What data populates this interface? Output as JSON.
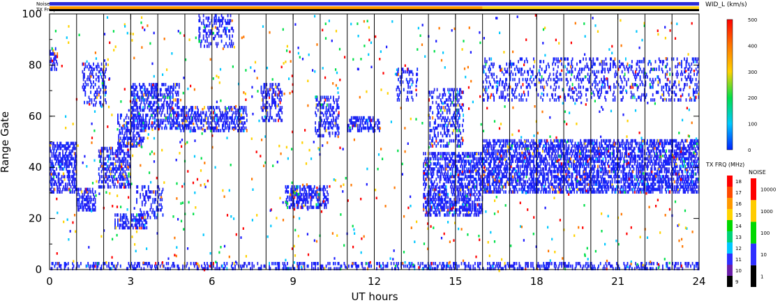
{
  "chart_data": {
    "type": "heatmap",
    "title": "",
    "xlabel": "UT hours",
    "ylabel": "Range Gate",
    "xlim": [
      0,
      24
    ],
    "ylim": [
      0,
      100
    ],
    "x_ticks": [
      "0",
      "3",
      "6",
      "9",
      "12",
      "15",
      "18",
      "21",
      "24"
    ],
    "y_ticks": [
      "0",
      "20",
      "40",
      "60",
      "80",
      "100"
    ],
    "top_bars": {
      "noise_label": "Noise",
      "txfreq_label": "TX Freq",
      "noise_color": "#2a2ad8",
      "txfreq_segments": [
        {
          "start": 0,
          "end": 16,
          "color": "#ff9a00"
        },
        {
          "start": 16,
          "end": 24,
          "color": "#ffd21a"
        }
      ]
    },
    "colorbars": {
      "width": {
        "label": "WID_L (km/s)",
        "min": 0,
        "max": 500,
        "ticks": [
          "0",
          "100",
          "200",
          "300",
          "400",
          "500"
        ],
        "colors": [
          "#0022ff",
          "#00c8ff",
          "#00e04a",
          "#ffd200",
          "#ff7700",
          "#ff0000"
        ]
      },
      "tx_freq": {
        "label": "TX FRQ (MHz)",
        "ticks": [
          "9",
          "10",
          "11",
          "12",
          "13",
          "14",
          "15",
          "16",
          "17",
          "18"
        ],
        "colors": [
          "#000000",
          "#6b1fa8",
          "#2f2fff",
          "#00c7ff",
          "#00d27a",
          "#00d800",
          "#ffd400",
          "#ff9900",
          "#ff4a00",
          "#ff0000"
        ]
      },
      "noise": {
        "label": "NOISE",
        "ticks": [
          "1",
          "10",
          "100",
          "1000",
          "10000"
        ],
        "colors": [
          "#000000",
          "#2f2fff",
          "#00d800",
          "#ffcc00",
          "#ff0000"
        ]
      }
    },
    "vertical_markers_ut": [
      1,
      2,
      3,
      4,
      5,
      6,
      7,
      8,
      9,
      10,
      11,
      12,
      13,
      14,
      15,
      16,
      17,
      18,
      19,
      20,
      21,
      22,
      23
    ],
    "backscatter_bands": [
      {
        "t0": 0.0,
        "t1": 1.0,
        "g0": 30,
        "g1": 49,
        "density": 0.9
      },
      {
        "t0": 0.0,
        "t1": 0.3,
        "g0": 78,
        "g1": 86,
        "density": 0.7
      },
      {
        "t0": 1.0,
        "t1": 1.7,
        "g0": 23,
        "g1": 31,
        "density": 0.85
      },
      {
        "t0": 1.2,
        "t1": 2.1,
        "g0": 64,
        "g1": 80,
        "density": 0.45
      },
      {
        "t0": 1.8,
        "t1": 3.0,
        "g0": 32,
        "g1": 47,
        "density": 0.75
      },
      {
        "t0": 2.4,
        "t1": 3.6,
        "g0": 16,
        "g1": 21,
        "density": 0.8
      },
      {
        "t0": 2.5,
        "t1": 3.5,
        "g0": 48,
        "g1": 60,
        "density": 0.7
      },
      {
        "t0": 3.0,
        "t1": 4.8,
        "g0": 55,
        "g1": 72,
        "density": 0.7
      },
      {
        "t0": 3.2,
        "t1": 4.2,
        "g0": 20,
        "g1": 32,
        "density": 0.4
      },
      {
        "t0": 4.8,
        "t1": 7.3,
        "g0": 54,
        "g1": 63,
        "density": 0.75
      },
      {
        "t0": 5.5,
        "t1": 6.8,
        "g0": 87,
        "g1": 99,
        "density": 0.45
      },
      {
        "t0": 7.8,
        "t1": 8.6,
        "g0": 58,
        "g1": 72,
        "density": 0.65
      },
      {
        "t0": 8.7,
        "t1": 10.3,
        "g0": 24,
        "g1": 32,
        "density": 0.85
      },
      {
        "t0": 9.8,
        "t1": 10.7,
        "g0": 52,
        "g1": 67,
        "density": 0.55
      },
      {
        "t0": 11.0,
        "t1": 12.2,
        "g0": 54,
        "g1": 59,
        "density": 0.75
      },
      {
        "t0": 12.8,
        "t1": 13.6,
        "g0": 66,
        "g1": 78,
        "density": 0.45
      },
      {
        "t0": 13.8,
        "t1": 16.0,
        "g0": 21,
        "g1": 45,
        "density": 0.85
      },
      {
        "t0": 14.0,
        "t1": 15.3,
        "g0": 48,
        "g1": 70,
        "density": 0.45
      },
      {
        "t0": 16.0,
        "t1": 24.0,
        "g0": 30,
        "g1": 50,
        "density": 0.9
      },
      {
        "t0": 16.0,
        "t1": 24.0,
        "g0": 66,
        "g1": 82,
        "density": 0.35
      },
      {
        "t0": 0.0,
        "t1": 24.0,
        "g0": 0,
        "g1": 2,
        "density": 0.55
      }
    ]
  }
}
